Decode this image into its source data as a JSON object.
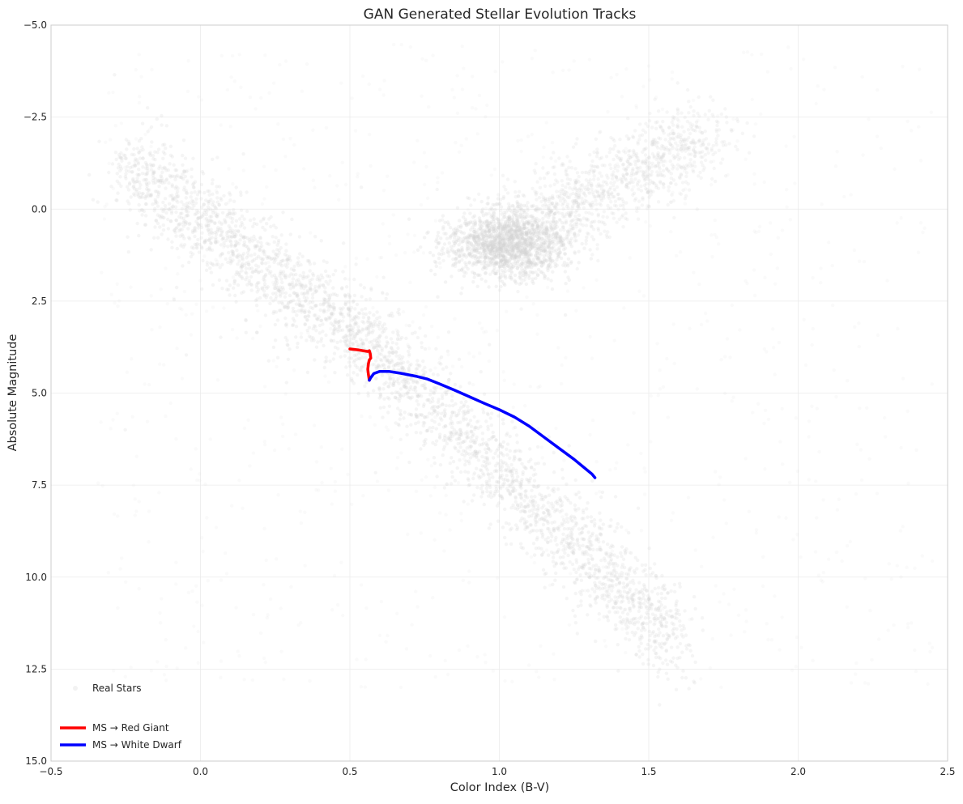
{
  "chart_data": {
    "type": "scatter",
    "title": "GAN Generated Stellar Evolution Tracks",
    "xlabel": "Color Index (B-V)",
    "ylabel": "Absolute Magnitude",
    "xlim": [
      -0.5,
      2.5
    ],
    "ylim": [
      15.0,
      -5.0
    ],
    "y_inverted": true,
    "grid": true,
    "legend_position": "lower-left",
    "x_ticks": [
      "−0.5",
      "0.0",
      "0.5",
      "1.0",
      "1.5",
      "2.0",
      "2.5"
    ],
    "y_ticks": [
      "−5.0",
      "−2.5",
      "0.0",
      "2.5",
      "5.0",
      "7.5",
      "10.0",
      "12.5",
      "15.0"
    ],
    "series": [
      {
        "name": "Real Stars",
        "kind": "scatter",
        "color": "#d3d3d3",
        "description_regions": [
          {
            "region": "main-sequence",
            "x_range": [
              -0.2,
              1.6
            ],
            "y_range": [
              -1.5,
              12.3
            ]
          },
          {
            "region": "red-giant-clump",
            "x_range": [
              0.85,
              1.3
            ],
            "y_range": [
              0.0,
              2.0
            ]
          },
          {
            "region": "giant-branch",
            "x_range": [
              0.9,
              1.7
            ],
            "y_range": [
              -2.5,
              1.0
            ]
          }
        ]
      },
      {
        "name": "MS → Red Giant",
        "kind": "line",
        "color": "#ff0000",
        "points": [
          [
            0.5,
            3.8
          ],
          [
            0.53,
            3.83
          ],
          [
            0.56,
            3.87
          ],
          [
            0.565,
            3.85
          ],
          [
            0.568,
            3.93
          ],
          [
            0.57,
            4.05
          ],
          [
            0.565,
            4.1
          ],
          [
            0.562,
            4.2
          ],
          [
            0.56,
            4.35
          ],
          [
            0.562,
            4.5
          ],
          [
            0.565,
            4.65
          ]
        ]
      },
      {
        "name": "MS → White Dwarf",
        "kind": "line",
        "color": "#0000ff",
        "points": [
          [
            0.565,
            4.65
          ],
          [
            0.57,
            4.58
          ],
          [
            0.58,
            4.47
          ],
          [
            0.6,
            4.41
          ],
          [
            0.63,
            4.41
          ],
          [
            0.67,
            4.46
          ],
          [
            0.72,
            4.54
          ],
          [
            0.76,
            4.62
          ],
          [
            0.8,
            4.75
          ],
          [
            0.85,
            4.92
          ],
          [
            0.9,
            5.1
          ],
          [
            0.95,
            5.28
          ],
          [
            1.0,
            5.45
          ],
          [
            1.05,
            5.65
          ],
          [
            1.1,
            5.9
          ],
          [
            1.15,
            6.2
          ],
          [
            1.2,
            6.5
          ],
          [
            1.25,
            6.8
          ],
          [
            1.28,
            7.0
          ],
          [
            1.31,
            7.2
          ],
          [
            1.32,
            7.3
          ]
        ]
      }
    ]
  }
}
